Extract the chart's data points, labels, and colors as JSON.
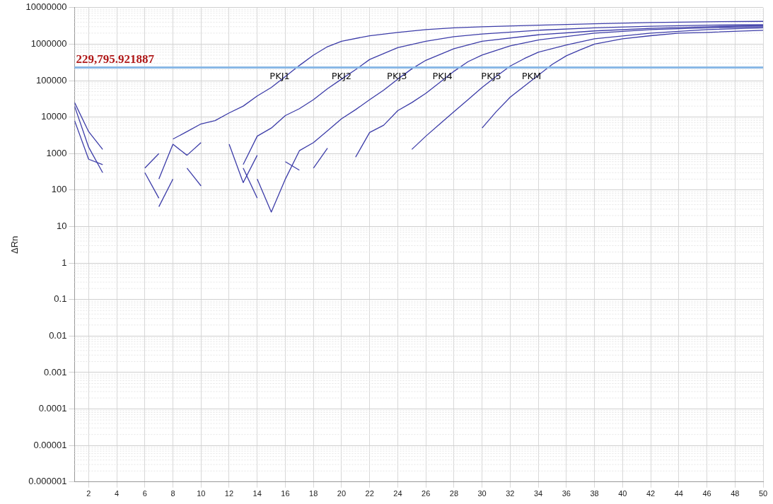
{
  "chart_data": {
    "type": "line",
    "ylabel": "ΔRn",
    "log": "y",
    "grid": true,
    "legend": false,
    "marker": "none",
    "line_style": "solid",
    "xlim": [
      1,
      50
    ],
    "xticks": [
      2,
      4,
      6,
      8,
      10,
      12,
      14,
      16,
      18,
      20,
      22,
      24,
      26,
      28,
      30,
      32,
      34,
      36,
      38,
      40,
      42,
      44,
      46,
      48,
      50
    ],
    "ylim": [
      1e-06,
      10000000
    ],
    "yticks": [
      {
        "value": 1e-06,
        "label": "0.000001"
      },
      {
        "value": 1e-05,
        "label": "0.00001"
      },
      {
        "value": 0.0001,
        "label": "0.0001"
      },
      {
        "value": 0.001,
        "label": "0.001"
      },
      {
        "value": 0.01,
        "label": "0.01"
      },
      {
        "value": 0.1,
        "label": "0.1"
      },
      1,
      10,
      100,
      1000,
      10000,
      100000,
      1000000,
      10000000
    ],
    "ref_lines": [
      {
        "axis": "y",
        "value": 229795.921887,
        "label": "229,795.921887",
        "color": "#8ab8e6"
      }
    ],
    "series": [
      {
        "name": "PKJ1",
        "color": "#3c3ca8",
        "x": [
          8,
          9,
          10,
          11,
          12,
          13,
          14,
          15,
          16,
          17,
          18,
          19,
          20,
          22,
          24,
          26,
          28,
          30,
          34,
          38,
          42,
          46,
          50
        ],
        "values": [
          2500,
          4000,
          6500,
          8000,
          13000,
          20000,
          38000,
          65000,
          130000,
          260000,
          500000,
          850000,
          1200000,
          1700000,
          2100000,
          2500000,
          2800000,
          3000000,
          3300000,
          3600000,
          3900000,
          4100000,
          4200000
        ]
      },
      {
        "name": "PKJ2",
        "color": "#3c3ca8",
        "x": [
          13,
          14,
          15,
          16,
          17,
          18,
          19,
          20,
          21,
          22,
          24,
          26,
          28,
          30,
          34,
          38,
          42,
          46,
          50
        ],
        "values": [
          500,
          3000,
          5000,
          11000,
          17000,
          30000,
          60000,
          110000,
          200000,
          380000,
          800000,
          1200000,
          1600000,
          1900000,
          2400000,
          2800000,
          3100000,
          3300000,
          3400000
        ]
      },
      {
        "name": "PKJ3",
        "color": "#3c3ca8",
        "x": [
          14,
          15,
          16,
          17,
          18,
          19,
          20,
          21,
          22,
          23,
          24,
          25,
          26,
          28,
          30,
          34,
          38,
          42,
          46,
          50
        ],
        "values": [
          200,
          25,
          200,
          1200,
          2000,
          4200,
          9000,
          16000,
          30000,
          55000,
          110000,
          210000,
          360000,
          750000,
          1200000,
          1800000,
          2300000,
          2700000,
          3000000,
          3200000
        ]
      },
      {
        "name": "PKJ4",
        "color": "#3c3ca8",
        "x": [
          21,
          22,
          23,
          24,
          25,
          26,
          27,
          28,
          29,
          30,
          32,
          34,
          38,
          42,
          46,
          50
        ],
        "values": [
          800,
          3800,
          6000,
          15000,
          25000,
          45000,
          90000,
          180000,
          330000,
          500000,
          900000,
          1300000,
          2000000,
          2500000,
          2800000,
          3000000
        ]
      },
      {
        "name": "PKJ5",
        "color": "#3c3ca8",
        "x": [
          25,
          26,
          27,
          28,
          29,
          30,
          31,
          32,
          33,
          34,
          36,
          38,
          42,
          46,
          50
        ],
        "values": [
          1300,
          3000,
          6500,
          14000,
          30000,
          65000,
          130000,
          250000,
          400000,
          600000,
          950000,
          1400000,
          2000000,
          2500000,
          2800000
        ]
      },
      {
        "name": "PKM",
        "color": "#3c3ca8",
        "x": [
          30,
          31,
          32,
          33,
          34,
          35,
          36,
          37,
          38,
          40,
          42,
          44,
          46,
          50
        ],
        "values": [
          5000,
          14000,
          35000,
          70000,
          140000,
          280000,
          480000,
          700000,
          1000000,
          1400000,
          1700000,
          2000000,
          2100000,
          2400000
        ]
      },
      {
        "color": "#3c3ca8",
        "x": [
          1,
          2,
          3
        ],
        "values": [
          25000,
          4000,
          1300
        ]
      },
      {
        "color": "#3c3ca8",
        "x": [
          1,
          2,
          3
        ],
        "values": [
          20000,
          1500,
          300
        ]
      },
      {
        "color": "#3c3ca8",
        "x": [
          1,
          2,
          3
        ],
        "values": [
          8000,
          700,
          500
        ]
      },
      {
        "color": "#3c3ca8",
        "x": [
          6,
          7
        ],
        "values": [
          400,
          1000
        ]
      },
      {
        "color": "#3c3ca8",
        "x": [
          6,
          7
        ],
        "values": [
          300,
          60
        ]
      },
      {
        "color": "#3c3ca8",
        "x": [
          7,
          8,
          9,
          10
        ],
        "values": [
          200,
          1800,
          900,
          2000
        ]
      },
      {
        "color": "#3c3ca8",
        "x": [
          7,
          8
        ],
        "values": [
          35,
          200
        ]
      },
      {
        "color": "#3c3ca8",
        "x": [
          9,
          10
        ],
        "values": [
          400,
          130
        ]
      },
      {
        "color": "#3c3ca8",
        "x": [
          12,
          13,
          14
        ],
        "values": [
          1800,
          160,
          900
        ]
      },
      {
        "color": "#3c3ca8",
        "x": [
          14,
          13
        ],
        "values": [
          60,
          400
        ]
      },
      {
        "color": "#3c3ca8",
        "x": [
          16,
          17
        ],
        "values": [
          600,
          350
        ]
      },
      {
        "color": "#3c3ca8",
        "x": [
          18,
          19
        ],
        "values": [
          400,
          1400
        ]
      }
    ]
  }
}
